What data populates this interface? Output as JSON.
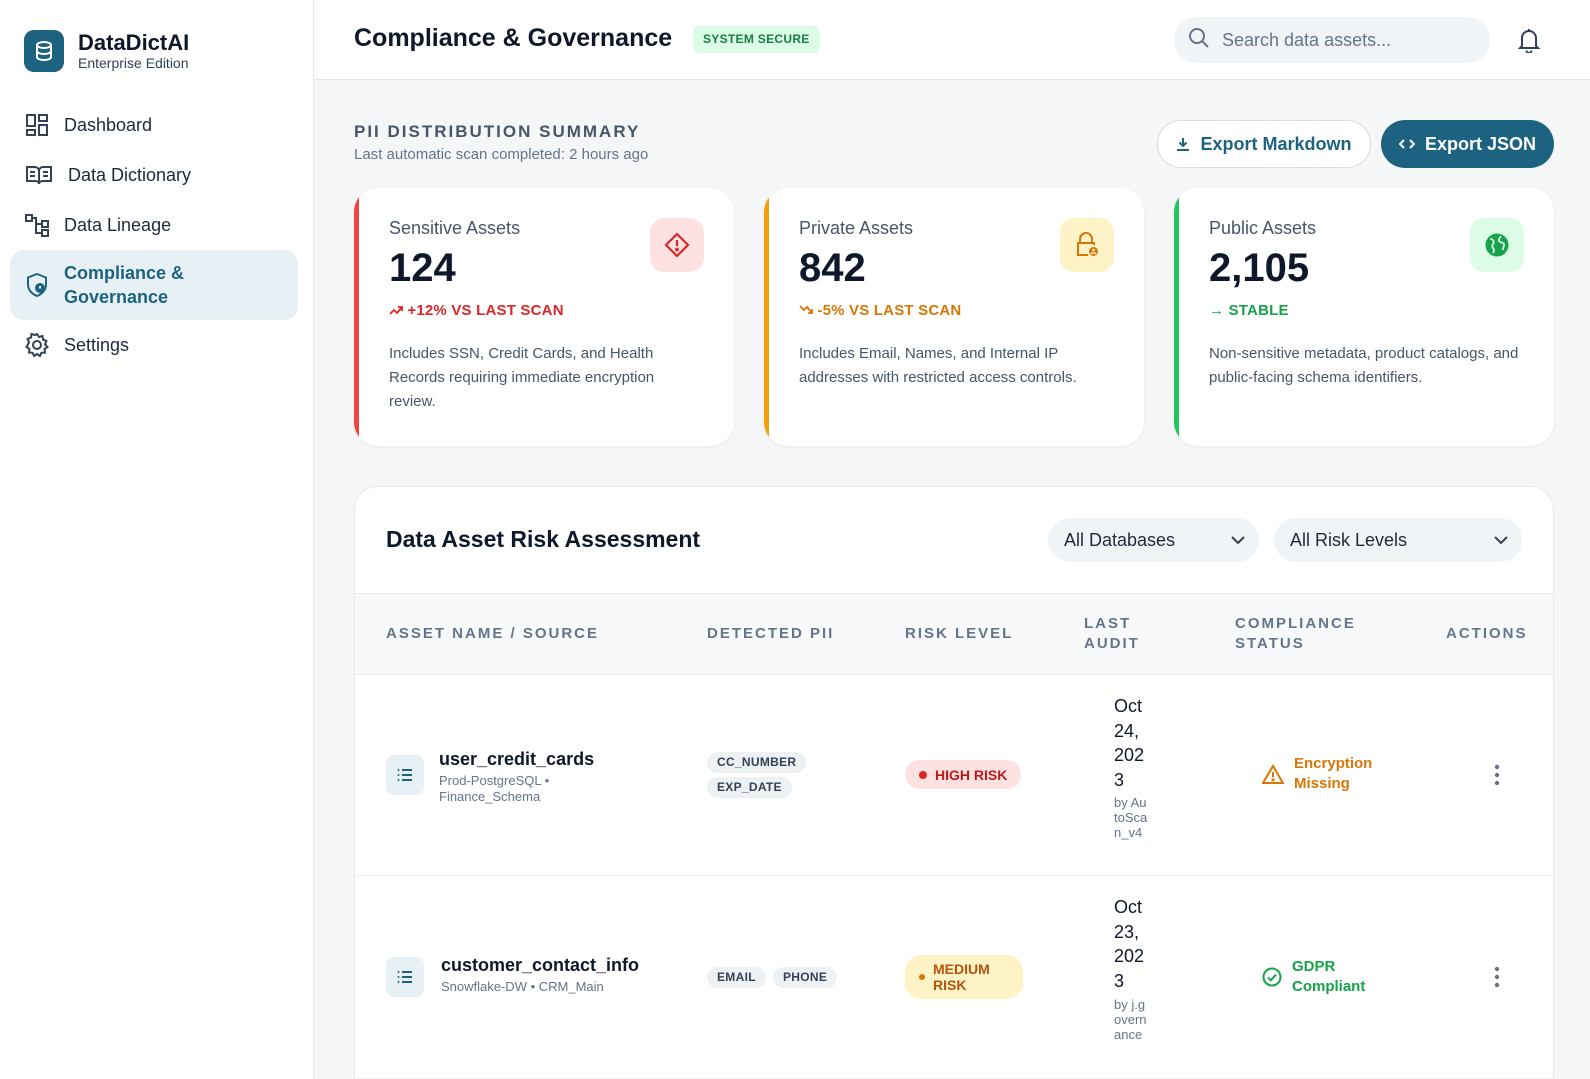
{
  "brand": {
    "name": "DataDictAI",
    "edition": "Enterprise Edition"
  },
  "nav": [
    {
      "label": "Dashboard",
      "icon": "dashboard-icon"
    },
    {
      "label": "Data Dictionary",
      "icon": "book-icon"
    },
    {
      "label": "Data Lineage",
      "icon": "lineage-icon"
    },
    {
      "label": "Compliance & Governance",
      "icon": "shield-icon",
      "active": true
    },
    {
      "label": "Settings",
      "icon": "gear-icon"
    }
  ],
  "header": {
    "title": "Compliance & Governance",
    "status_badge": "SYSTEM SECURE",
    "search_placeholder": "Search data assets..."
  },
  "summary": {
    "title": "PII DISTRIBUTION SUMMARY",
    "subtitle": "Last automatic scan completed: 2 hours ago",
    "export_markdown": "Export Markdown",
    "export_json": "Export JSON"
  },
  "cards": [
    {
      "label": "Sensitive Assets",
      "value": "124",
      "trend": "+12% VS LAST SCAN",
      "desc": "Includes SSN, Credit Cards, and Health Records requiring immediate encryption review.",
      "color": "#dc2626",
      "icon": "warning-diamond-icon"
    },
    {
      "label": "Private Assets",
      "value": "842",
      "trend": "-5% VS LAST SCAN",
      "desc": "Includes Email, Names, and Internal IP addresses with restricted access controls.",
      "color": "#d97706",
      "icon": "lock-person-icon"
    },
    {
      "label": "Public Assets",
      "value": "2,105",
      "trend": "STABLE",
      "desc": "Non-sensitive metadata, product catalogs, and public-facing schema identifiers.",
      "color": "#16a34a",
      "icon": "globe-icon"
    }
  ],
  "table": {
    "title": "Data Asset Risk Assessment",
    "filter_db": "All Databases",
    "filter_risk": "All Risk Levels",
    "columns": [
      "ASSET NAME / SOURCE",
      "DETECTED PII",
      "RISK LEVEL",
      "LAST AUDIT",
      "COMPLIANCE STATUS",
      "ACTIONS"
    ],
    "rows": [
      {
        "name": "user_credit_cards",
        "source": "Prod-PostgreSQL • Finance_Schema",
        "pii": [
          "CC_NUMBER",
          "EXP_DATE"
        ],
        "risk": "HIGH RISK",
        "audit_date": "Oct 24, 2023",
        "audit_by": "by AutoScan_v4",
        "status": "Encryption Missing"
      },
      {
        "name": "customer_contact_info",
        "source": "Snowflake-DW • CRM_Main",
        "pii": [
          "EMAIL",
          "PHONE"
        ],
        "risk": "MEDIUM RISK",
        "audit_date": "Oct 23, 2023",
        "audit_by": "by j.governance",
        "status": "GDPR Compliant"
      }
    ]
  }
}
